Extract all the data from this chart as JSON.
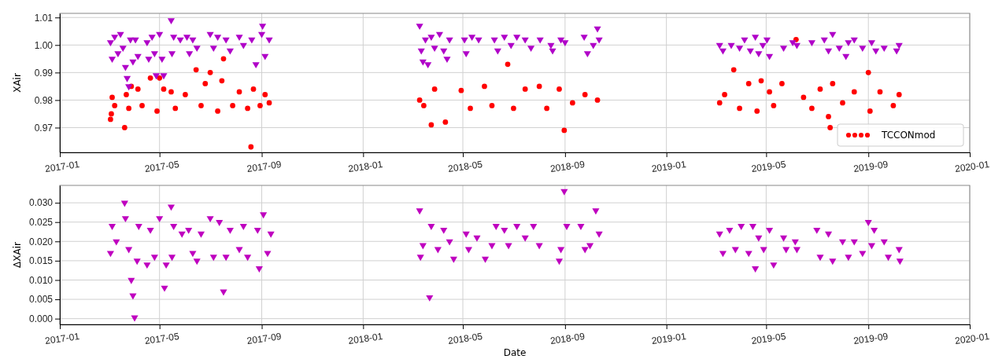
{
  "chart_data": [
    {
      "type": "scatter",
      "ylabel": "XAir",
      "xlim": [
        "2017-01-01",
        "2020-01-01"
      ],
      "xticks": [
        "2017-01",
        "2017-05",
        "2017-09",
        "2018-01",
        "2018-05",
        "2018-09",
        "2019-01",
        "2019-05",
        "2019-09",
        "2020-01"
      ],
      "ylim": [
        0.961,
        1.0115
      ],
      "yticks": [
        0.97,
        0.98,
        0.99,
        {
          "value": 1.0,
          "label": "1.00"
        },
        1.01
      ],
      "grid": true,
      "legend": "bottom right",
      "series": [
        {
          "name": "TCCONmod",
          "color": "#ff0000",
          "marker": "circle",
          "x": [
            "2017-03-03",
            "2017-03-04",
            "2017-03-05",
            "2017-03-08",
            "2017-03-20",
            "2017-03-22",
            "2017-03-25",
            "2017-03-28",
            "2017-04-05",
            "2017-04-10",
            "2017-04-20",
            "2017-04-28",
            "2017-05-01",
            "2017-05-06",
            "2017-05-15",
            "2017-05-20",
            "2017-06-01",
            "2017-06-14",
            "2017-06-20",
            "2017-06-25",
            "2017-07-01",
            "2017-07-10",
            "2017-07-15",
            "2017-07-17",
            "2017-07-28",
            "2017-08-05",
            "2017-08-15",
            "2017-08-19",
            "2017-08-22",
            "2017-08-30",
            "2017-09-05",
            "2017-09-10",
            "2018-03-10",
            "2018-03-15",
            "2018-03-24",
            "2018-03-28",
            "2018-04-10",
            "2018-04-29",
            "2018-05-10",
            "2018-05-27",
            "2018-06-05",
            "2018-06-24",
            "2018-07-01",
            "2018-07-15",
            "2018-08-01",
            "2018-08-10",
            "2018-08-25",
            "2018-08-31",
            "2018-09-10",
            "2018-09-25",
            "2018-10-10",
            "2019-03-06",
            "2019-03-12",
            "2019-03-23",
            "2019-03-30",
            "2019-04-10",
            "2019-04-20",
            "2019-04-25",
            "2019-05-05",
            "2019-05-10",
            "2019-05-20",
            "2019-06-06",
            "2019-06-15",
            "2019-06-25",
            "2019-07-05",
            "2019-07-15",
            "2019-07-17",
            "2019-07-20",
            "2019-08-01",
            "2019-08-15",
            "2019-09-01",
            "2019-09-03",
            "2019-09-15",
            "2019-10-01",
            "2019-10-08"
          ],
          "values": [
            0.973,
            0.975,
            0.981,
            0.978,
            0.97,
            0.982,
            0.977,
            0.985,
            0.984,
            0.978,
            0.988,
            0.976,
            0.988,
            0.984,
            0.983,
            0.977,
            0.982,
            0.991,
            0.978,
            0.986,
            0.99,
            0.976,
            0.987,
            0.995,
            0.978,
            0.983,
            0.977,
            0.963,
            0.984,
            0.978,
            0.982,
            0.979,
            0.98,
            0.978,
            0.971,
            0.984,
            0.972,
            0.9835,
            0.977,
            0.985,
            0.978,
            0.993,
            0.977,
            0.984,
            0.985,
            0.977,
            0.984,
            0.969,
            0.979,
            0.982,
            0.98,
            0.979,
            0.982,
            0.991,
            0.977,
            0.986,
            0.976,
            0.987,
            0.983,
            0.978,
            0.986,
            1.002,
            0.981,
            0.977,
            0.984,
            0.974,
            0.97,
            0.986,
            0.979,
            0.983,
            0.99,
            0.976,
            0.983,
            0.978,
            0.982
          ]
        },
        {
          "color": "#b000c8",
          "marker": "triangle",
          "x": [
            "2017-03-03",
            "2017-03-05",
            "2017-03-08",
            "2017-03-12",
            "2017-03-15",
            "2017-03-18",
            "2017-03-21",
            "2017-03-23",
            "2017-03-25",
            "2017-03-27",
            "2017-03-30",
            "2017-04-02",
            "2017-04-05",
            "2017-04-16",
            "2017-04-18",
            "2017-04-22",
            "2017-04-25",
            "2017-04-27",
            "2017-05-01",
            "2017-05-04",
            "2017-05-06",
            "2017-05-15",
            "2017-05-16",
            "2017-05-18",
            "2017-05-26",
            "2017-06-03",
            "2017-06-06",
            "2017-06-10",
            "2017-06-15",
            "2017-07-01",
            "2017-07-05",
            "2017-07-10",
            "2017-07-20",
            "2017-07-25",
            "2017-08-05",
            "2017-08-10",
            "2017-08-20",
            "2017-08-25",
            "2017-09-01",
            "2017-09-02",
            "2017-09-05",
            "2017-09-10",
            "2018-03-10",
            "2018-03-12",
            "2018-03-14",
            "2018-03-17",
            "2018-03-20",
            "2018-03-24",
            "2018-03-28",
            "2018-04-03",
            "2018-04-08",
            "2018-04-12",
            "2018-04-15",
            "2018-05-03",
            "2018-05-05",
            "2018-05-12",
            "2018-05-20",
            "2018-06-08",
            "2018-06-12",
            "2018-06-20",
            "2018-06-28",
            "2018-07-05",
            "2018-07-15",
            "2018-07-22",
            "2018-08-02",
            "2018-08-15",
            "2018-08-17",
            "2018-08-27",
            "2018-09-01",
            "2018-09-24",
            "2018-09-28",
            "2018-10-05",
            "2018-10-10",
            "2018-10-12",
            "2019-03-06",
            "2019-03-10",
            "2019-03-20",
            "2019-03-30",
            "2019-04-05",
            "2019-04-12",
            "2019-04-18",
            "2019-04-22",
            "2019-04-27",
            "2019-05-02",
            "2019-05-05",
            "2019-05-22",
            "2019-06-02",
            "2019-06-07",
            "2019-06-25",
            "2019-07-10",
            "2019-07-15",
            "2019-07-20",
            "2019-07-28",
            "2019-08-05",
            "2019-08-08",
            "2019-08-15",
            "2019-08-25",
            "2019-09-05",
            "2019-09-10",
            "2019-09-20",
            "2019-10-05",
            "2019-10-08"
          ],
          "values": [
            1.001,
            0.995,
            1.003,
            0.997,
            1.004,
            0.999,
            0.992,
            0.988,
            0.985,
            1.002,
            0.994,
            1.002,
            0.996,
            1.001,
            0.995,
            1.003,
            0.997,
            0.989,
            1.004,
            0.995,
            0.989,
            1.009,
            0.997,
            1.003,
            1.002,
            1.003,
            0.997,
            1.002,
            0.999,
            1.004,
            0.999,
            1.003,
            1.002,
            0.998,
            1.003,
            1.0,
            1.002,
            0.993,
            1.004,
            1.007,
            0.996,
            1.002,
            1.007,
            0.998,
            0.994,
            1.002,
            0.993,
            1.003,
            0.999,
            1.004,
            0.998,
            0.995,
            1.002,
            1.002,
            0.997,
            1.003,
            1.002,
            1.002,
            0.998,
            1.003,
            1.0,
            1.003,
            1.002,
            0.999,
            1.002,
            1.0,
            0.998,
            1.002,
            1.001,
            1.003,
            0.997,
            1.0,
            1.006,
            1.002,
            1.0,
            0.998,
            1.0,
            0.999,
            1.002,
            0.998,
            1.003,
            0.997,
            1.0,
            1.002,
            0.996,
            0.999,
            1.001,
            1.0,
            1.001,
            1.002,
            0.998,
            1.004,
            0.999,
            0.996,
            1.001,
            1.002,
            0.999,
            1.001,
            0.998,
            0.999,
            0.998,
            1.0
          ]
        }
      ]
    },
    {
      "type": "scatter",
      "xlabel": "Date",
      "ylabel": "ΔXAir",
      "xlim": [
        "2017-01-01",
        "2020-01-01"
      ],
      "xticks": [
        "2017-01",
        "2017-05",
        "2017-09",
        "2018-01",
        "2018-05",
        "2018-09",
        "2019-01",
        "2019-05",
        "2019-09",
        "2020-01"
      ],
      "ylim": [
        -0.0015,
        0.0345
      ],
      "yticks": [
        {
          "value": 0,
          "label": "0.000"
        },
        0.005,
        {
          "value": 0.01,
          "label": "0.010"
        },
        0.015,
        {
          "value": 0.02,
          "label": "0.020"
        },
        0.025,
        {
          "value": 0.03,
          "label": "0.030"
        }
      ],
      "grid": true,
      "series": [
        {
          "color": "#bf00bf",
          "marker": "triangle",
          "x": [
            "2017-03-03",
            "2017-03-05",
            "2017-03-10",
            "2017-03-20",
            "2017-03-21",
            "2017-03-25",
            "2017-03-28",
            "2017-03-30",
            "2017-04-01",
            "2017-04-04",
            "2017-04-06",
            "2017-04-16",
            "2017-04-20",
            "2017-04-25",
            "2017-05-01",
            "2017-05-07",
            "2017-05-09",
            "2017-05-15",
            "2017-05-16",
            "2017-05-18",
            "2017-05-28",
            "2017-06-05",
            "2017-06-10",
            "2017-06-15",
            "2017-06-20",
            "2017-07-01",
            "2017-07-05",
            "2017-07-12",
            "2017-07-17",
            "2017-07-20",
            "2017-07-25",
            "2017-08-05",
            "2017-08-10",
            "2017-08-15",
            "2017-08-29",
            "2017-08-27",
            "2017-09-03",
            "2017-09-08",
            "2017-09-12",
            "2018-03-10",
            "2018-03-11",
            "2018-03-14",
            "2018-03-22",
            "2018-03-24",
            "2018-04-01",
            "2018-04-08",
            "2018-04-15",
            "2018-04-20",
            "2018-05-05",
            "2018-05-08",
            "2018-05-18",
            "2018-05-28",
            "2018-06-05",
            "2018-06-10",
            "2018-06-20",
            "2018-06-25",
            "2018-07-05",
            "2018-07-15",
            "2018-07-25",
            "2018-08-01",
            "2018-08-25",
            "2018-08-27",
            "2018-08-31",
            "2018-09-03",
            "2018-09-20",
            "2018-09-25",
            "2018-10-01",
            "2018-10-08",
            "2018-10-12",
            "2019-03-06",
            "2019-03-10",
            "2019-03-18",
            "2019-03-25",
            "2019-04-01",
            "2019-04-10",
            "2019-04-15",
            "2019-04-18",
            "2019-04-22",
            "2019-04-28",
            "2019-05-05",
            "2019-05-10",
            "2019-05-22",
            "2019-05-25",
            "2019-06-05",
            "2019-06-07",
            "2019-07-01",
            "2019-07-05",
            "2019-07-15",
            "2019-07-20",
            "2019-08-01",
            "2019-08-08",
            "2019-08-15",
            "2019-08-25",
            "2019-09-01",
            "2019-09-05",
            "2019-09-08",
            "2019-09-20",
            "2019-09-25",
            "2019-10-08",
            "2019-10-09"
          ],
          "values": [
            0.017,
            0.024,
            0.02,
            0.03,
            0.026,
            0.018,
            0.01,
            0.006,
            0.0003,
            0.015,
            0.024,
            0.014,
            0.023,
            0.016,
            0.026,
            0.008,
            0.014,
            0.029,
            0.016,
            0.024,
            0.022,
            0.023,
            0.017,
            0.015,
            0.022,
            0.026,
            0.016,
            0.025,
            0.007,
            0.016,
            0.023,
            0.018,
            0.024,
            0.016,
            0.013,
            0.023,
            0.027,
            0.017,
            0.022,
            0.028,
            0.016,
            0.019,
            0.0055,
            0.024,
            0.018,
            0.023,
            0.02,
            0.0155,
            0.022,
            0.018,
            0.021,
            0.0155,
            0.019,
            0.024,
            0.023,
            0.019,
            0.024,
            0.021,
            0.024,
            0.019,
            0.015,
            0.018,
            0.033,
            0.024,
            0.024,
            0.018,
            0.019,
            0.028,
            0.022,
            0.022,
            0.017,
            0.023,
            0.018,
            0.024,
            0.017,
            0.024,
            0.013,
            0.021,
            0.018,
            0.023,
            0.014,
            0.021,
            0.018,
            0.02,
            0.018,
            0.023,
            0.016,
            0.022,
            0.015,
            0.02,
            0.016,
            0.02,
            0.017,
            0.025,
            0.019,
            0.023,
            0.02,
            0.016,
            0.018,
            0.015
          ]
        }
      ]
    }
  ]
}
